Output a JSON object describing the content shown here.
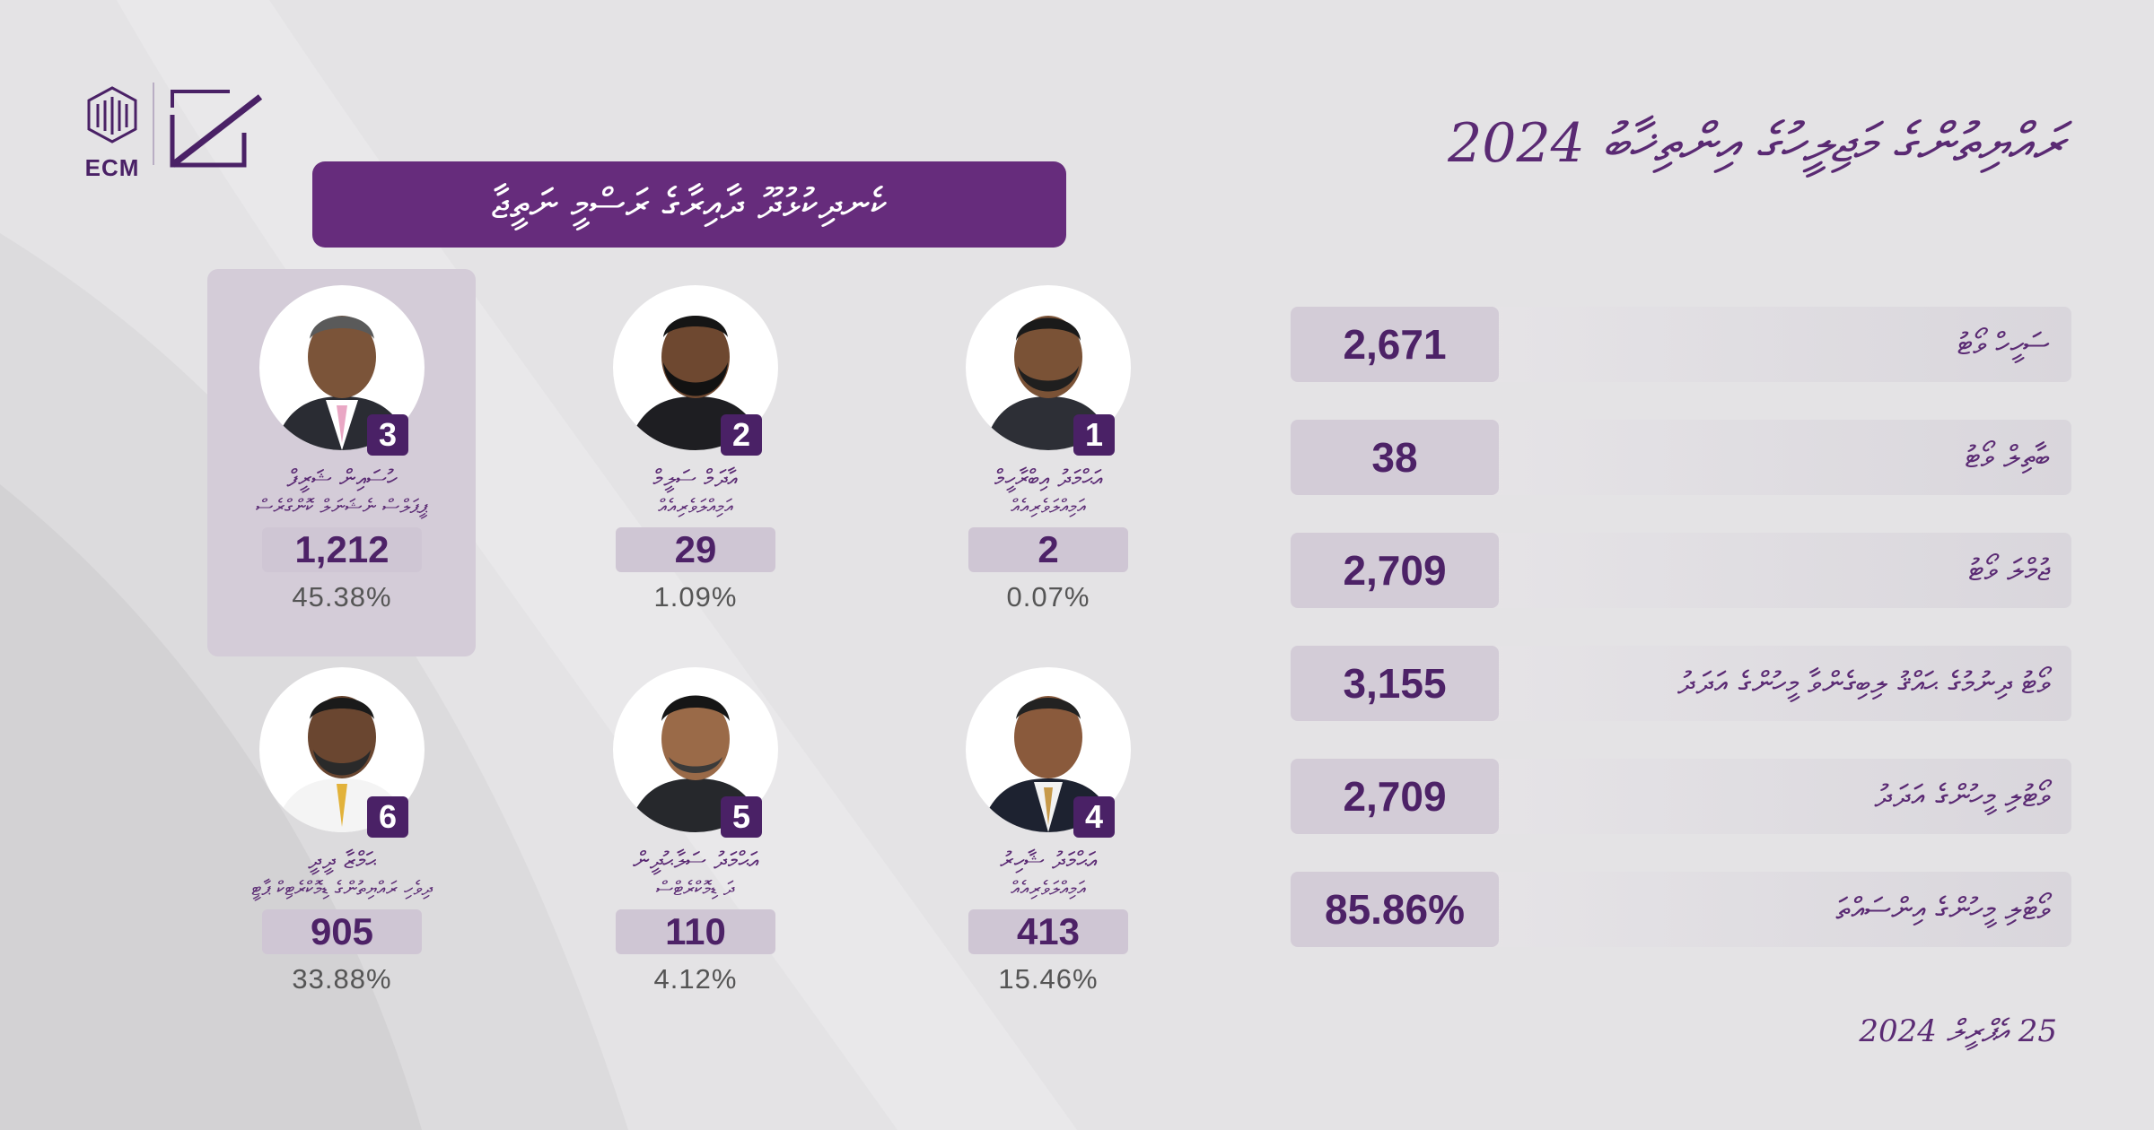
{
  "title": "ރައްޔިތުންގެ މަޖިލީހުގެ އިންތިޚާބު 2024",
  "results_heading": "ކެނދިކުޅުދޫ ދާއިރާގެ ރަސްމީ ނަތީޖާ",
  "logo": {
    "text": "ECM"
  },
  "stats": [
    {
      "label": "ސަހީހް ވޯޓު",
      "value": "2,671"
    },
    {
      "label": "ބާތިލް ވޯޓު",
      "value": "38"
    },
    {
      "label": "ޖުމްލަ ވޯޓު",
      "value": "2,709"
    },
    {
      "label": "ވޯޓު ދިނުމުގެ ޙައްޤު ލިބިގެންވާ މީހުންގެ އަދަދު",
      "value": "3,155"
    },
    {
      "label": "ވޯޓުލި މީހުންގެ އަދަދު",
      "value": "2,709"
    },
    {
      "label": "ވޯޓުލި މީހުންގެ އިންސައްތަ",
      "value": "85.86%"
    }
  ],
  "candidates": [
    {
      "number": "1",
      "name_line1": "އަޙްމަދު އިބްރާހީމް",
      "name_line2": "އަމިއްލަވެރިއެއް",
      "votes": "2",
      "percent": "0.07%"
    },
    {
      "number": "2",
      "name_line1": "އާދަމް ސަލީމް",
      "name_line2": "އަމިއްލަވެރިއެއް",
      "votes": "29",
      "percent": "1.09%"
    },
    {
      "number": "3",
      "name_line1": "ހުސައިން ޝަރީފް",
      "name_line2": "ޕީޕަލްސް ނެޝަނަލް ކޮންގްރެސް",
      "votes": "1,212",
      "percent": "45.38%",
      "highlighted": true
    },
    {
      "number": "4",
      "name_line1": "އަޙްމަދު ޝާހިރު",
      "name_line2": "އަމިއްލަވެރިއެއް",
      "votes": "413",
      "percent": "15.46%"
    },
    {
      "number": "5",
      "name_line1": "އަޙްމަދު ސަލާޙުދީން",
      "name_line2": "ދަ ޑިމޮކްރެޓްސް",
      "votes": "110",
      "percent": "4.12%"
    },
    {
      "number": "6",
      "name_line1": "ޙަމްޒާ ދީދީ",
      "name_line2": "ދިވެހި ރައްޔިތުންގެ ޑިމޮކްރެޓިކް ޕާޓީ",
      "votes": "905",
      "percent": "33.88%"
    }
  ],
  "date": "25 އެޕްރީލް 2024",
  "colors": {
    "accent": "#662c7c",
    "badge": "#4a2166",
    "chip": "#cfc6d4"
  }
}
